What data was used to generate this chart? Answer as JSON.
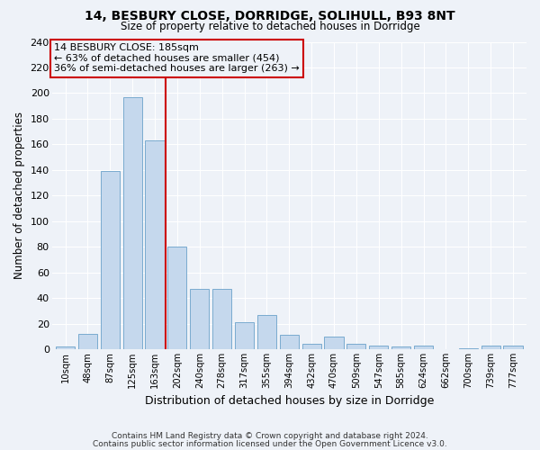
{
  "title1": "14, BESBURY CLOSE, DORRIDGE, SOLIHULL, B93 8NT",
  "title2": "Size of property relative to detached houses in Dorridge",
  "xlabel": "Distribution of detached houses by size in Dorridge",
  "ylabel": "Number of detached properties",
  "categories": [
    "10sqm",
    "48sqm",
    "87sqm",
    "125sqm",
    "163sqm",
    "202sqm",
    "240sqm",
    "278sqm",
    "317sqm",
    "355sqm",
    "394sqm",
    "432sqm",
    "470sqm",
    "509sqm",
    "547sqm",
    "585sqm",
    "624sqm",
    "662sqm",
    "700sqm",
    "739sqm",
    "777sqm"
  ],
  "values": [
    2,
    12,
    139,
    197,
    163,
    80,
    47,
    47,
    21,
    27,
    11,
    4,
    10,
    4,
    3,
    2,
    3,
    0,
    1,
    3,
    3
  ],
  "bar_color": "#c5d8ed",
  "bar_edge_color": "#7aabcf",
  "reference_line_x": 4.5,
  "annotation_lines": [
    "14 BESBURY CLOSE: 185sqm",
    "← 63% of detached houses are smaller (454)",
    "36% of semi-detached houses are larger (263) →"
  ],
  "annotation_box_color": "#cc0000",
  "ymax": 240,
  "yticks": [
    0,
    20,
    40,
    60,
    80,
    100,
    120,
    140,
    160,
    180,
    200,
    220,
    240
  ],
  "footnote1": "Contains HM Land Registry data © Crown copyright and database right 2024.",
  "footnote2": "Contains public sector information licensed under the Open Government Licence v3.0.",
  "bg_color": "#eef2f8",
  "grid_color": "#ffffff"
}
